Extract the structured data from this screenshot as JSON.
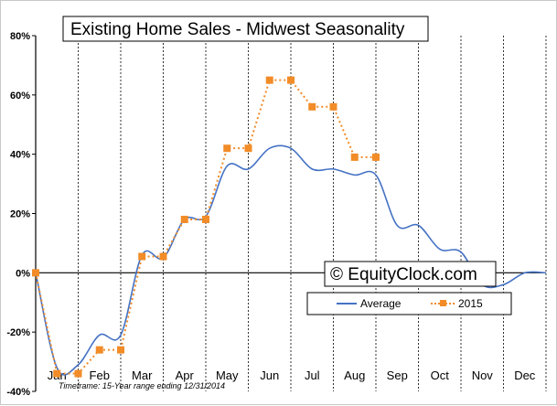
{
  "chart_data": {
    "type": "line",
    "title": "Existing Home Sales - Midwest Seasonality",
    "footnote": "Timeframe: 15-Year range ending 12/31/2014",
    "watermark": "© EquityClock.com",
    "ylim": [
      -40,
      80
    ],
    "yticks": [
      -40,
      -20,
      0,
      20,
      40,
      60,
      80
    ],
    "ytick_labels": [
      "-40%",
      "-20%",
      "0%",
      "20%",
      "40%",
      "60%",
      "80%"
    ],
    "months": [
      "Jan",
      "Feb",
      "Mar",
      "Apr",
      "May",
      "Jun",
      "Jul",
      "Aug",
      "Sep",
      "Oct",
      "Nov",
      "Dec"
    ],
    "x_range": [
      0,
      24
    ],
    "grid": "vertical dashed",
    "legend_position": "bottom-right",
    "series": [
      {
        "name": "Average",
        "color": "#4472c4",
        "marker": "none",
        "x": [
          0,
          1,
          2,
          3,
          4,
          5,
          6,
          7,
          8,
          9,
          10,
          11,
          12,
          13,
          14,
          15,
          16,
          17,
          18,
          19,
          20,
          21,
          22,
          23,
          24
        ],
        "y": [
          0,
          -32,
          -31,
          -21,
          -21,
          6,
          5,
          18,
          19,
          36,
          35,
          42,
          42,
          35,
          35,
          33,
          33,
          16,
          16,
          8,
          7,
          -4,
          -4,
          0,
          0
        ]
      },
      {
        "name": "2015",
        "color": "#f28c28",
        "marker": "square",
        "x": [
          0,
          1,
          2,
          3,
          4,
          5,
          6,
          7,
          8,
          9,
          10,
          11,
          12,
          13,
          14,
          15,
          16
        ],
        "y": [
          0,
          -34,
          -34,
          -26,
          -26,
          5.5,
          5.5,
          18,
          18,
          42,
          42,
          65,
          65,
          56,
          56,
          39,
          39
        ]
      }
    ],
    "legend_sample_points": [
      2015
    ]
  }
}
